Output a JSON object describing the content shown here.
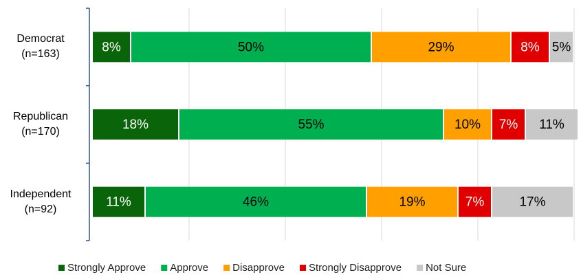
{
  "chart_data": {
    "type": "stacked_bar_horizontal",
    "categories": [
      "Democrat\n(n=163)",
      "Republican\n(n=170)",
      "Independent\n(n=92)"
    ],
    "series": [
      {
        "name": "Strongly Approve",
        "color": "#0a640a",
        "text_color": "#ffffff",
        "values": [
          8,
          18,
          11
        ],
        "value_labels": [
          "8%",
          "18%",
          "11%"
        ]
      },
      {
        "name": "Approve",
        "color": "#00b050",
        "text_color": "#000000",
        "values": [
          50,
          55,
          46
        ],
        "value_labels": [
          "50%",
          "55%",
          "46%"
        ]
      },
      {
        "name": "Disapprove",
        "color": "#ffa000",
        "text_color": "#000000",
        "values": [
          29,
          10,
          19
        ],
        "value_labels": [
          "29%",
          "10%",
          "19%"
        ]
      },
      {
        "name": "Strongly Disapprove",
        "color": "#e00000",
        "text_color": "#ffffff",
        "values": [
          8,
          7,
          7
        ],
        "value_labels": [
          "8%",
          "7%",
          "7%"
        ]
      },
      {
        "name": "Not Sure",
        "color": "#c8c8c8",
        "text_color": "#000000",
        "values": [
          5,
          11,
          17
        ],
        "value_labels": [
          "5%",
          "11%",
          "17%"
        ]
      }
    ],
    "xlim": [
      0,
      100
    ],
    "xticks": [
      0,
      20,
      40,
      60,
      80,
      100
    ],
    "grid": true,
    "legend": "bottom"
  }
}
